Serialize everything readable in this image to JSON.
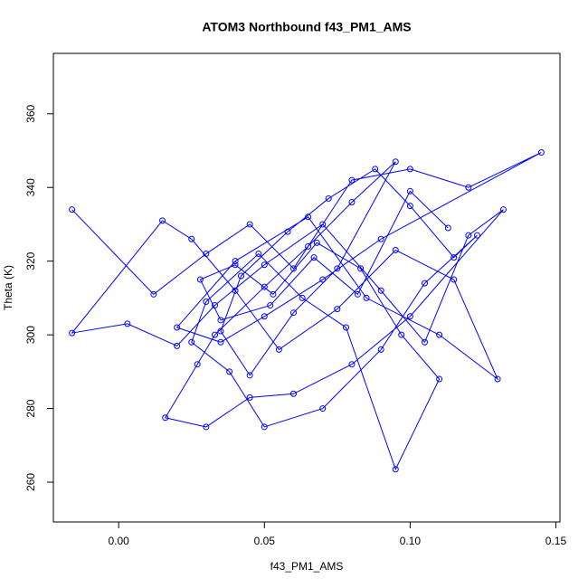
{
  "chart_data": {
    "type": "line",
    "title": "ATOM3 Northbound f43_PM1_AMS",
    "x_label": "f43_PM1_AMS",
    "y_label": "Theta (K)",
    "xlim": [
      -0.0224,
      0.1514
    ],
    "ylim": [
      249.2,
      376.4
    ],
    "xticks": [
      {
        "value": 0,
        "label": "0.00"
      },
      {
        "value": 0.05,
        "label": "0.05"
      },
      {
        "value": 0.1,
        "label": "0.10"
      },
      {
        "value": 0.15,
        "label": "0.15"
      }
    ],
    "yticks": [
      260,
      280,
      300,
      320,
      340,
      360
    ],
    "color": "#0000ff",
    "series": [
      {
        "color": "#0000ff",
        "x": [
          -0.016,
          0.012,
          0.03,
          0.045,
          0.06,
          0.08,
          0.1,
          0.12,
          0.145,
          0.09,
          0.07,
          0.05,
          0.035,
          0.02,
          0.04,
          0.065,
          0.085,
          0.11,
          0.13,
          0.115,
          0.095,
          0.075,
          0.055,
          0.04,
          0.025,
          0.015,
          -0.016,
          0.003,
          0.02,
          0.033,
          0.05,
          0.07,
          0.09,
          0.105,
          0.12,
          0.132,
          0.1,
          0.08,
          0.06,
          0.045,
          0.03,
          0.016,
          0.027,
          0.033,
          0.05,
          0.065,
          0.08,
          0.095,
          0.075,
          0.06,
          0.045,
          0.035,
          0.042,
          0.058,
          0.072,
          0.088,
          0.1,
          0.115,
          0.123,
          0.105,
          0.09,
          0.07,
          0.05,
          0.038,
          0.025,
          0.03,
          0.048,
          0.063,
          0.078,
          0.095,
          0.11,
          0.097,
          0.083,
          0.068,
          0.053,
          0.04,
          0.028,
          0.035,
          0.052,
          0.067,
          0.082,
          0.1,
          0.113
        ],
        "values": [
          334,
          311,
          322,
          330,
          318,
          342,
          345,
          340,
          349.5,
          326,
          315,
          305,
          298,
          302,
          320,
          332,
          310,
          300,
          288,
          315,
          323,
          307,
          296,
          312,
          326,
          331,
          300.5,
          303,
          297,
          308,
          319,
          330,
          312,
          298,
          327,
          334,
          305,
          292,
          284,
          283,
          275,
          277.5,
          292,
          300,
          313,
          324,
          336,
          347,
          318,
          306,
          289,
          301,
          316,
          328,
          337,
          345,
          335,
          321,
          327,
          314,
          296,
          280,
          275,
          290,
          298,
          309,
          322,
          310,
          302,
          263.5,
          288,
          300,
          318,
          325,
          311,
          319,
          315,
          304,
          308,
          321,
          311,
          339,
          329
        ]
      }
    ]
  }
}
